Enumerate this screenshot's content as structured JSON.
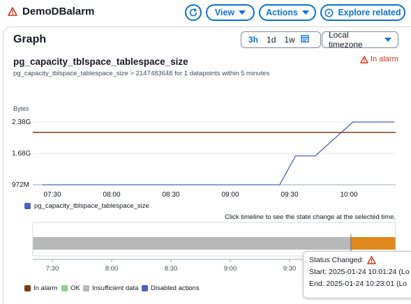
{
  "header": {
    "title": "DemoDBalarm",
    "view_label": "View",
    "actions_label": "Actions",
    "explore_label": "Explore related"
  },
  "graph": {
    "heading": "Graph",
    "periods": [
      "3h",
      "1d",
      "1w"
    ],
    "active_period": "3h",
    "timezone": "Local timezone",
    "metric_title": "pg_capacity_tblspace_tablespace_size",
    "metric_description": "pg_capacity_tblspace_tablespace_size > 2147483648 for 1 datapoints within 5 minutes",
    "alarm_state": "In alarm",
    "unit": "Bytes",
    "legend_label": "pg_capacity_tblspace_tablespace_size",
    "timeline_hint": "Click timeline to see the state change at the selected time."
  },
  "chart_data": {
    "type": "line",
    "ylabel": "Bytes",
    "y_tick_labels": [
      "2.38G",
      "1.68G",
      "972M"
    ],
    "x_tick_labels": [
      "07:30",
      "08:00",
      "08:30",
      "09:00",
      "09:30",
      "10:00"
    ],
    "threshold": {
      "label": "In alarm",
      "value": 2.147,
      "color": "#7b3b13"
    },
    "series": [
      {
        "name": "pg_capacity_tblspace_tablespace_size",
        "color": "#4f5fbf",
        "x": [
          "07:25",
          "09:25",
          "09:33",
          "09:43",
          "09:52",
          "10:02",
          "10:23"
        ],
        "y": [
          0.972,
          0.972,
          1.62,
          1.62,
          1.98,
          2.38,
          2.38
        ]
      }
    ],
    "y_range": [
      0.972,
      2.38
    ]
  },
  "timeline": {
    "x_tick_labels": [
      "7:30",
      "8:00",
      "8:30",
      "9:00",
      "9:30"
    ],
    "legend": [
      {
        "label": "In alarm",
        "color": "#7b3b13"
      },
      {
        "label": "OK",
        "color": "#8fd18f"
      },
      {
        "label": "Insufficient data",
        "color": "#b8b8b8"
      },
      {
        "label": "Disabled actions",
        "color": "#4f5fbf"
      }
    ]
  },
  "popover": {
    "title": "Status Changed:",
    "start_label": "Start:",
    "start_value": "2025-01-24 10:01:24 (Lo",
    "end_label": "End:",
    "end_value": "2025-01-24 10:23:01 (Lo"
  },
  "colors": {
    "accent": "#0972d3",
    "alarm_red": "#d13212",
    "series": "#4f5fbf",
    "threshold": "#7b3b13",
    "insufficient": "#b8b8b8",
    "alarm_orange": "#e08a1e"
  }
}
